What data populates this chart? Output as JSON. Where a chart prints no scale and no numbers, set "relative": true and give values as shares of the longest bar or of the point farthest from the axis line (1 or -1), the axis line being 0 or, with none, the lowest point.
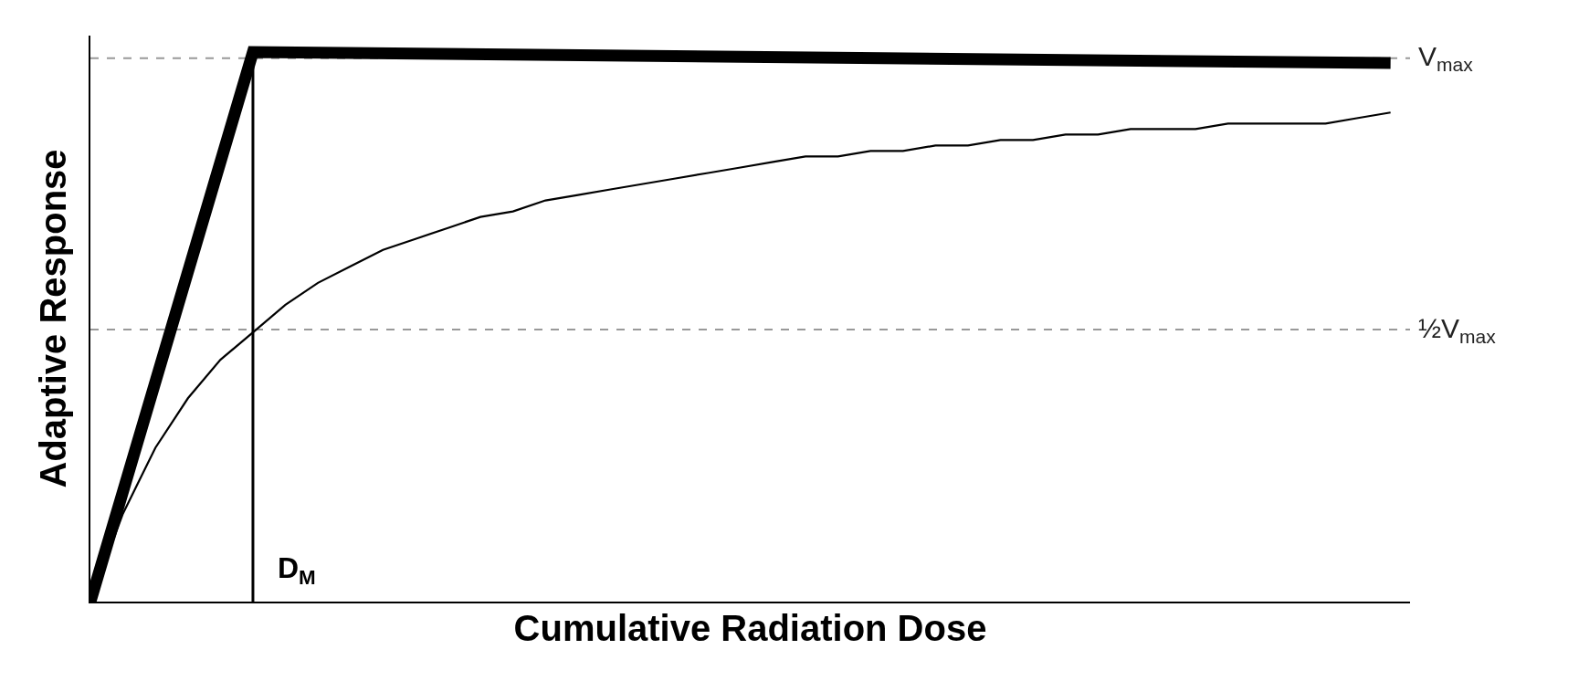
{
  "chart_data": {
    "type": "line",
    "relative": true,
    "xlabel": "Cumulative Radiation Dose",
    "ylabel": "Adaptive Response",
    "grid": false,
    "marker": "none",
    "categories": [
      null,
      null,
      null,
      null,
      null,
      null,
      null,
      null,
      null,
      null,
      null,
      null,
      null,
      null,
      null,
      null,
      null,
      null,
      null,
      null,
      null,
      null,
      null,
      null,
      null,
      null,
      null,
      null,
      null,
      null,
      null,
      null,
      null,
      null,
      null,
      null,
      null,
      null,
      null,
      null,
      null
    ],
    "series": [
      {
        "color": "#000000",
        "line_style": "solid",
        "values": [
          0,
          null,
          null,
          null,
          null,
          1.0,
          null,
          null,
          null,
          null,
          null,
          null,
          null,
          null,
          null,
          null,
          null,
          null,
          null,
          null,
          null,
          null,
          null,
          null,
          null,
          null,
          null,
          null,
          null,
          null,
          null,
          null,
          null,
          null,
          null,
          null,
          null,
          null,
          null,
          null,
          0.98
        ]
      },
      {
        "color": "#000000",
        "line_style": "solid",
        "values": [
          0,
          0.16,
          0.28,
          0.37,
          0.44,
          0.49,
          0.54,
          0.58,
          0.61,
          0.64,
          0.66,
          0.68,
          0.7,
          0.71,
          0.73,
          0.74,
          0.75,
          0.76,
          0.77,
          0.78,
          0.79,
          0.8,
          0.81,
          0.81,
          0.82,
          0.82,
          0.83,
          0.83,
          0.84,
          0.84,
          0.85,
          0.85,
          0.86,
          0.86,
          0.86,
          0.87,
          0.87,
          0.87,
          0.87,
          0.88,
          0.89
        ]
      }
    ],
    "ref_lines": [
      {
        "axis": "y",
        "value": 0.989,
        "label": "V$_{max}$",
        "color": "#999999",
        "line_style": "dashed"
      },
      {
        "axis": "y",
        "value": 0.495,
        "label": "½V$_{max}$",
        "color": "#999999",
        "line_style": "dashed"
      },
      {
        "axis": "x",
        "label": "D$_{M}$",
        "color": "#000000",
        "line_style": "solid"
      }
    ]
  }
}
